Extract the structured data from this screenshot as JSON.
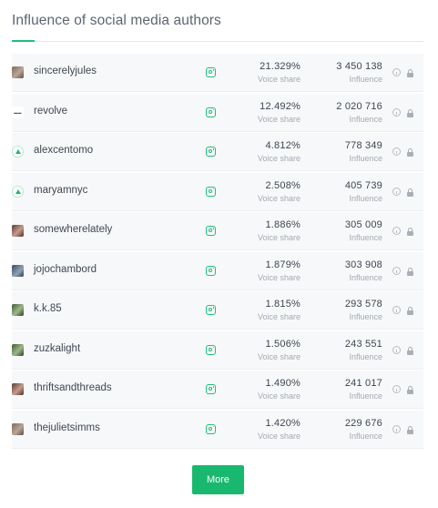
{
  "header": {
    "title": "Influence of social media authors"
  },
  "rows": [
    {
      "name": "sincerelyjules",
      "voice_share": "21.329%",
      "voice_label": "Voice share",
      "influence": "3 450 138",
      "influence_label": "Influence",
      "avatar": "photo",
      "network_icon": "instagram-icon"
    },
    {
      "name": "revolve",
      "voice_share": "12.492%",
      "voice_label": "Voice share",
      "influence": "2 020 716",
      "influence_label": "Influence",
      "avatar": "logo",
      "network_icon": "instagram-icon"
    },
    {
      "name": "alexcentomo",
      "voice_share": "4.812%",
      "voice_label": "Voice share",
      "influence": "778 349",
      "influence_label": "Influence",
      "avatar": "generic",
      "network_icon": "instagram-icon"
    },
    {
      "name": "maryamnyc",
      "voice_share": "2.508%",
      "voice_label": "Voice share",
      "influence": "405 739",
      "influence_label": "Influence",
      "avatar": "generic",
      "network_icon": "instagram-icon"
    },
    {
      "name": "somewherelately",
      "voice_share": "1.886%",
      "voice_label": "Voice share",
      "influence": "305 009",
      "influence_label": "Influence",
      "avatar": "photo4",
      "network_icon": "instagram-icon"
    },
    {
      "name": "jojochambord",
      "voice_share": "1.879%",
      "voice_label": "Voice share",
      "influence": "303 908",
      "influence_label": "Influence",
      "avatar": "photo2",
      "network_icon": "instagram-icon"
    },
    {
      "name": "k.k.85",
      "voice_share": "1.815%",
      "voice_label": "Voice share",
      "influence": "293 578",
      "influence_label": "Influence",
      "avatar": "photo3",
      "network_icon": "instagram-icon"
    },
    {
      "name": "zuzkalight",
      "voice_share": "1.506%",
      "voice_label": "Voice share",
      "influence": "243 551",
      "influence_label": "Influence",
      "avatar": "photo3",
      "network_icon": "instagram-icon"
    },
    {
      "name": "thriftsandthreads",
      "voice_share": "1.490%",
      "voice_label": "Voice share",
      "influence": "241 017",
      "influence_label": "Influence",
      "avatar": "photo4",
      "network_icon": "instagram-icon"
    },
    {
      "name": "thejulietsimms",
      "voice_share": "1.420%",
      "voice_label": "Voice share",
      "influence": "229 676",
      "influence_label": "Influence",
      "avatar": "photo",
      "network_icon": "instagram-icon"
    }
  ],
  "more_button": {
    "label": "More"
  },
  "colors": {
    "accent": "#18b96f",
    "row_background": "#f7f8f9",
    "muted_text": "#a4aab2"
  }
}
